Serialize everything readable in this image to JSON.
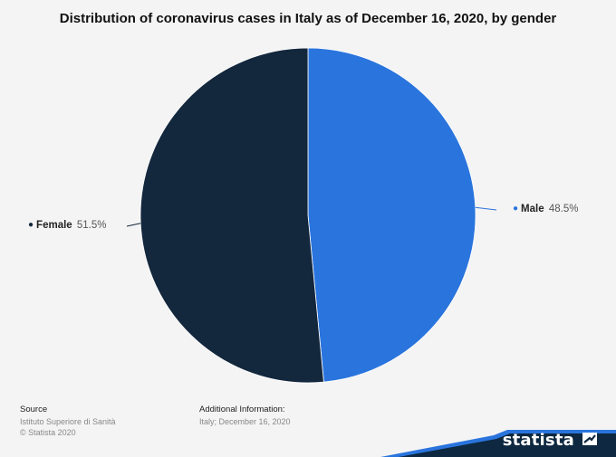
{
  "chart_data": {
    "type": "pie",
    "title": "Distribution of coronavirus cases in Italy as of December 16, 2020, by gender",
    "slices": [
      {
        "label": "Male",
        "value": 48.5,
        "value_label": "48.5%",
        "color": "#2a74dd"
      },
      {
        "label": "Female",
        "value": 51.5,
        "value_label": "51.5%",
        "color": "#13273d"
      }
    ]
  },
  "footer": {
    "source_heading": "Source",
    "source_line1": "Istituto Superiore di Sanità",
    "source_line2": "© Statista 2020",
    "info_heading": "Additional Information:",
    "info_line1": "Italy; December 16, 2020"
  },
  "brand": {
    "name": "statista",
    "colors": {
      "band": "#0d2840",
      "accent": "#2a74dd"
    }
  }
}
